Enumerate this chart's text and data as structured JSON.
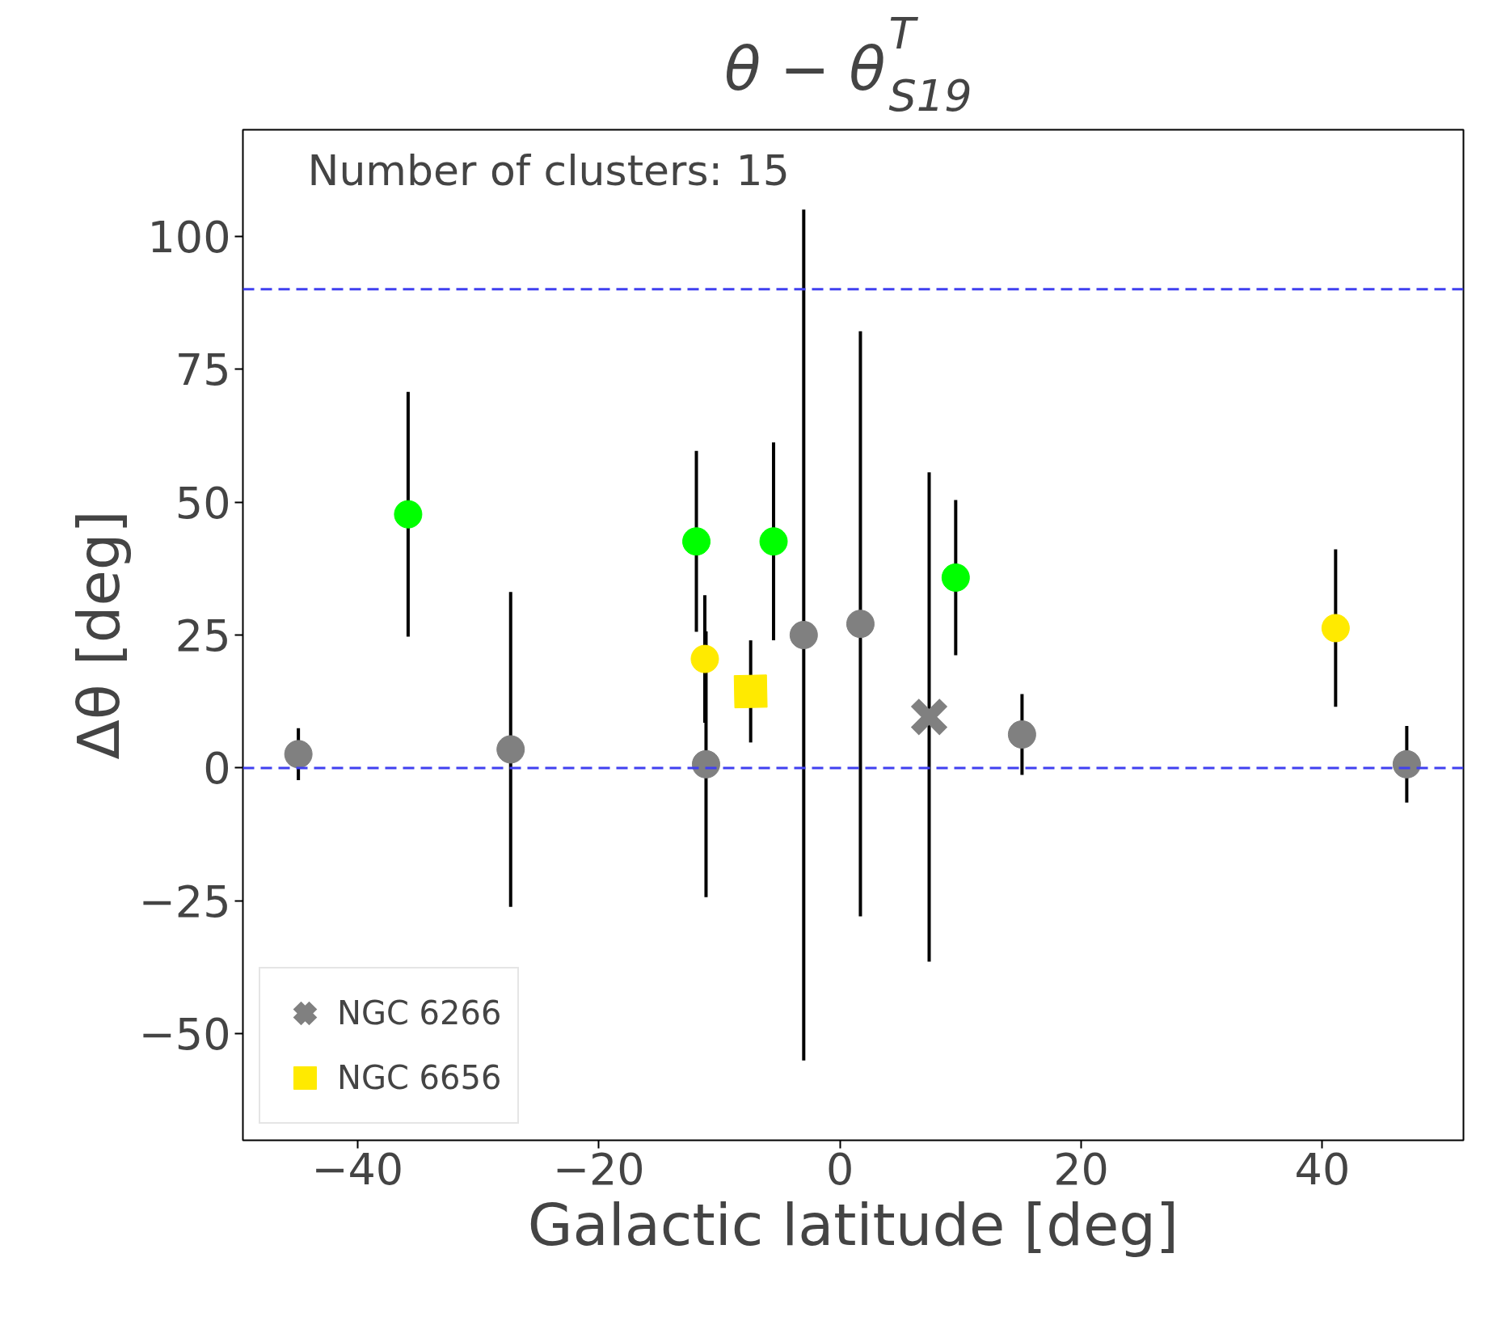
{
  "chart_data": {
    "type": "scatter",
    "title": "θ − θ$^{T}$$_{S19}$",
    "xlabel": "Galactic latitude [deg]",
    "ylabel": "Δθ [deg]",
    "annotations": [
      "Number of clusters: 15"
    ],
    "xlim": [
      -49.5,
      51.7
    ],
    "ylim": [
      -70,
      120
    ],
    "xticks": [
      {
        "value": -40,
        "label": "−40"
      },
      {
        "value": -20,
        "label": "−20"
      },
      0,
      20,
      40
    ],
    "yticks": [
      {
        "value": -50,
        "label": "−50"
      },
      {
        "value": -25,
        "label": "−25"
      },
      0,
      25,
      50,
      75,
      100
    ],
    "grid": false,
    "legend": "bottom left",
    "ref_lines": [
      {
        "axis": "y",
        "value": 0,
        "color": "#4040f0",
        "line_style": "dashed"
      },
      {
        "axis": "y",
        "value": 90,
        "color": "#4040f0",
        "line_style": "dashed"
      }
    ],
    "series": [
      {
        "color": "#808080",
        "marker": "circle",
        "x": [
          -44.9,
          -27.3,
          -11.1,
          -3.0,
          1.7,
          15.1,
          47.0
        ],
        "values": [
          2.6,
          3.5,
          0.7,
          25,
          27.1,
          6.3,
          0.7
        ],
        "errors": [
          4.9,
          29.6,
          25,
          80,
          55,
          7.6,
          7.2
        ]
      },
      {
        "color": "#00ff00",
        "marker": "circle",
        "x": [
          -35.8,
          -11.9,
          -5.5,
          9.6
        ],
        "values": [
          47.7,
          42.6,
          42.6,
          35.8
        ],
        "errors": [
          23,
          17,
          18.6,
          14.6
        ]
      },
      {
        "color": "#ffea00",
        "marker": "circle",
        "x": [
          -11.2,
          41.1
        ],
        "values": [
          20.5,
          26.3
        ],
        "errors": [
          12,
          14.8
        ]
      },
      {
        "name": "NGC 6266",
        "color": "#808080",
        "marker": "cross",
        "x": [
          7.4
        ],
        "values": [
          9.6
        ],
        "errors": [
          46
        ]
      },
      {
        "name": "NGC 6656",
        "color": "#ffea00",
        "marker": "square",
        "x": [
          -7.4
        ],
        "values": [
          14.4
        ],
        "errors": [
          9.6
        ]
      }
    ]
  }
}
